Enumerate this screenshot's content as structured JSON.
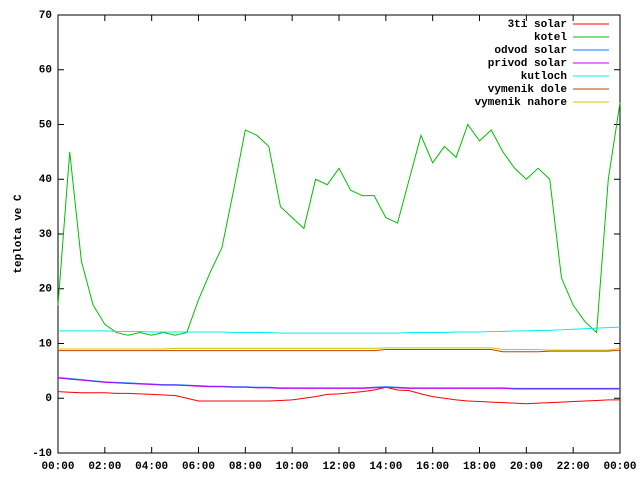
{
  "chart_data": {
    "type": "line",
    "ylabel": "teplota ve C",
    "x": [
      0,
      0.5,
      1,
      1.5,
      2,
      2.5,
      3,
      3.5,
      4,
      4.5,
      5,
      5.5,
      6,
      6.5,
      7,
      7.5,
      8,
      8.5,
      9,
      9.5,
      10,
      10.5,
      11,
      11.5,
      12,
      12.5,
      13,
      13.5,
      14,
      14.5,
      15,
      15.5,
      16,
      16.5,
      17,
      17.5,
      18,
      18.5,
      19,
      19.5,
      20,
      20.5,
      21,
      21.5,
      22,
      22.5,
      23,
      23.5,
      24
    ],
    "xlim": [
      0,
      24
    ],
    "xticks": [
      {
        "value": 0,
        "label": "00:00"
      },
      {
        "value": 2,
        "label": "02:00"
      },
      {
        "value": 4,
        "label": "04:00"
      },
      {
        "value": 6,
        "label": "06:00"
      },
      {
        "value": 8,
        "label": "08:00"
      },
      {
        "value": 10,
        "label": "10:00"
      },
      {
        "value": 12,
        "label": "12:00"
      },
      {
        "value": 14,
        "label": "14:00"
      },
      {
        "value": 16,
        "label": "16:00"
      },
      {
        "value": 18,
        "label": "18:00"
      },
      {
        "value": 20,
        "label": "20:00"
      },
      {
        "value": 22,
        "label": "22:00"
      },
      {
        "value": 24,
        "label": "00:00"
      }
    ],
    "ylim": [
      -10,
      70
    ],
    "yticks": [
      -10,
      0,
      10,
      20,
      30,
      40,
      50,
      60,
      70
    ],
    "legend": "top-right",
    "series": [
      {
        "name": "3ti solar",
        "color": "#ff0000",
        "values": [
          1.2,
          1.1,
          1.0,
          1.0,
          1.0,
          0.9,
          0.9,
          0.8,
          0.7,
          0.6,
          0.5,
          0.0,
          -0.5,
          -0.5,
          -0.5,
          -0.5,
          -0.5,
          -0.5,
          -0.5,
          -0.4,
          -0.3,
          0.0,
          0.3,
          0.7,
          0.8,
          1.0,
          1.2,
          1.5,
          2.0,
          1.5,
          1.4,
          0.8,
          0.3,
          0,
          -0.3,
          -0.5,
          -0.6,
          -0.7,
          -0.8,
          -0.9,
          -1.0,
          -0.9,
          -0.8,
          -0.7,
          -0.6,
          -0.5,
          -0.4,
          -0.3,
          -0.3
        ]
      },
      {
        "name": "kotel",
        "color": "#00c000",
        "values": [
          17,
          45,
          25,
          17,
          13.5,
          12,
          11.5,
          12,
          11.5,
          12,
          11.5,
          12,
          18,
          23,
          27.5,
          38,
          49,
          48,
          46,
          35,
          33,
          31,
          40,
          39,
          42,
          38,
          37,
          37,
          33,
          32,
          40,
          48,
          43,
          46,
          44,
          50,
          47,
          49,
          45,
          42,
          40,
          42,
          40,
          22,
          17,
          14,
          12,
          40,
          54
        ]
      },
      {
        "name": "odvod solar",
        "color": "#0080ff",
        "values": [
          3.8,
          3.6,
          3.4,
          3.2,
          3.0,
          2.9,
          2.8,
          2.7,
          2.6,
          2.5,
          2.5,
          2.4,
          2.3,
          2.2,
          2.2,
          2.1,
          2.1,
          2.0,
          2.0,
          1.9,
          1.9,
          1.9,
          1.9,
          1.9,
          1.9,
          1.9,
          1.9,
          2.0,
          2.1,
          2.0,
          1.9,
          1.9,
          1.9,
          1.9,
          1.9,
          1.9,
          1.9,
          1.9,
          1.9,
          1.8,
          1.8,
          1.8,
          1.8,
          1.8,
          1.8,
          1.8,
          1.8,
          1.8,
          1.8
        ]
      },
      {
        "name": "privod solar",
        "color": "#c000ff",
        "values": [
          3.7,
          3.5,
          3.3,
          3.1,
          2.9,
          2.8,
          2.7,
          2.6,
          2.5,
          2.4,
          2.4,
          2.3,
          2.2,
          2.1,
          2.1,
          2.0,
          2.0,
          1.9,
          1.9,
          1.8,
          1.8,
          1.8,
          1.8,
          1.8,
          1.8,
          1.8,
          1.8,
          1.9,
          2.0,
          1.9,
          1.8,
          1.8,
          1.8,
          1.8,
          1.8,
          1.8,
          1.8,
          1.8,
          1.8,
          1.7,
          1.7,
          1.7,
          1.7,
          1.7,
          1.7,
          1.7,
          1.7,
          1.7,
          1.7
        ]
      },
      {
        "name": "kutloch",
        "color": "#00eeee",
        "values": [
          12.3,
          12.3,
          12.3,
          12.3,
          12.3,
          12.2,
          12.2,
          12.2,
          12.1,
          12.1,
          12.1,
          12.1,
          12.1,
          12.1,
          12.1,
          12.0,
          12.0,
          12.0,
          12.0,
          11.9,
          11.9,
          11.9,
          11.9,
          11.9,
          11.9,
          11.9,
          11.9,
          11.9,
          11.9,
          11.9,
          12.0,
          12.0,
          12.0,
          12.0,
          12.1,
          12.1,
          12.1,
          12.2,
          12.2,
          12.3,
          12.3,
          12.4,
          12.4,
          12.5,
          12.6,
          12.7,
          12.8,
          12.9,
          13.0
        ]
      },
      {
        "name": "vymenik dole",
        "color": "#c04000",
        "values": [
          8.7,
          8.7,
          8.7,
          8.7,
          8.7,
          8.7,
          8.7,
          8.7,
          8.7,
          8.7,
          8.7,
          8.7,
          8.7,
          8.7,
          8.7,
          8.7,
          8.7,
          8.7,
          8.7,
          8.7,
          8.7,
          8.7,
          8.7,
          8.7,
          8.7,
          8.7,
          8.7,
          8.7,
          8.9,
          8.9,
          8.9,
          8.9,
          8.9,
          8.9,
          8.9,
          8.9,
          8.9,
          8.9,
          8.5,
          8.5,
          8.5,
          8.5,
          8.6,
          8.6,
          8.6,
          8.6,
          8.6,
          8.6,
          8.8
        ]
      },
      {
        "name": "vymenik nahore",
        "color": "#c8c800",
        "values": [
          9.0,
          9.0,
          9.0,
          9.0,
          9.0,
          9.0,
          9.0,
          9.0,
          9.0,
          9.0,
          9.1,
          9.1,
          9.1,
          9.1,
          9.1,
          9.1,
          9.1,
          9.1,
          9.1,
          9.1,
          9.1,
          9.1,
          9.1,
          9.1,
          9.1,
          9.1,
          9.1,
          9.1,
          9.2,
          9.2,
          9.2,
          9.2,
          9.2,
          9.2,
          9.2,
          9.2,
          9.2,
          9.2,
          8.9,
          8.9,
          8.9,
          8.9,
          8.8,
          8.8,
          8.8,
          8.8,
          8.8,
          8.8,
          9.1
        ]
      }
    ]
  }
}
